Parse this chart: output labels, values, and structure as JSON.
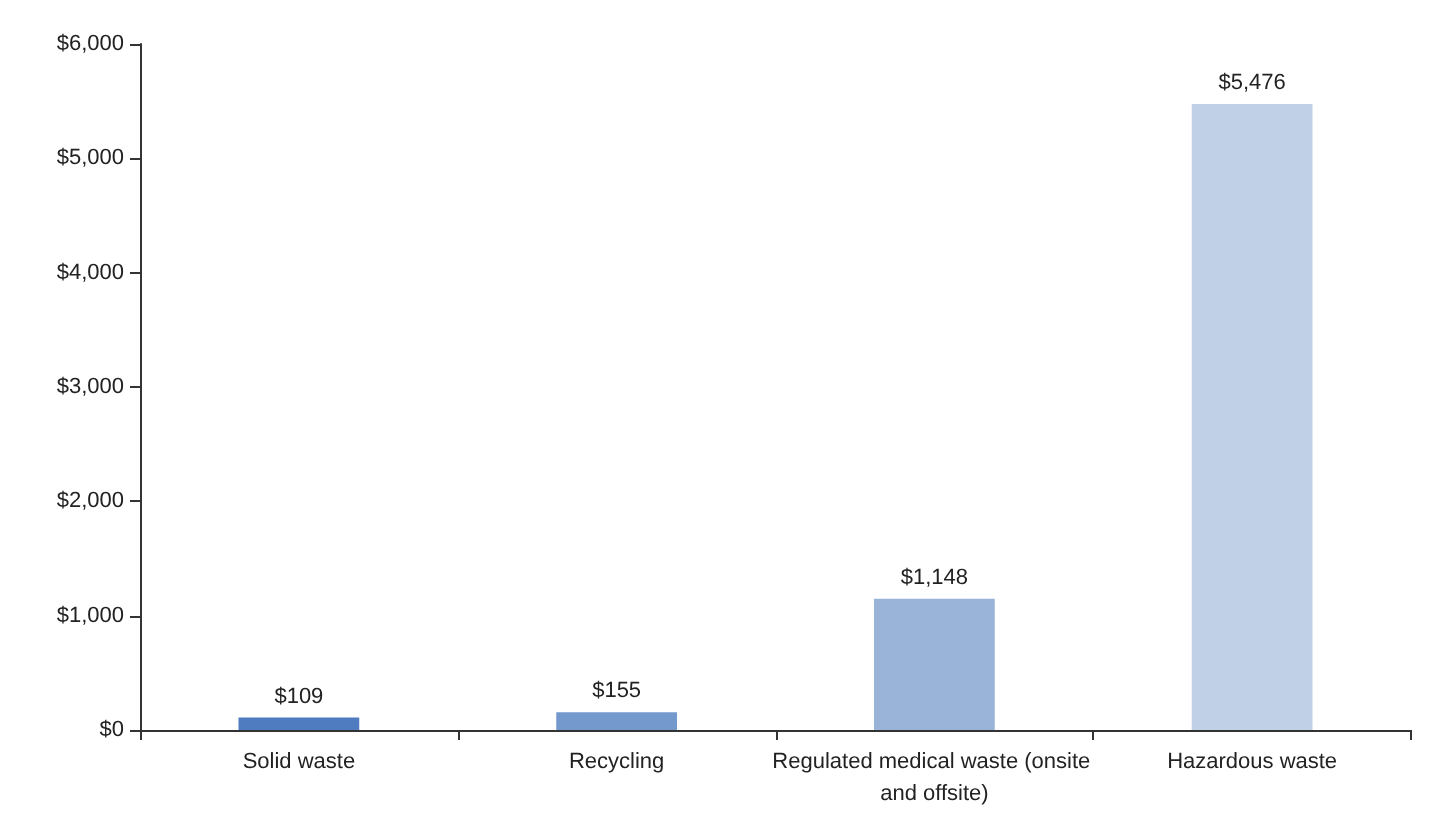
{
  "chart_data": {
    "type": "bar",
    "categories": [
      "Solid waste",
      "Recycling",
      "Regulated medical waste (onsite and offsite)",
      "Hazardous waste"
    ],
    "values": [
      109,
      155,
      1148,
      5476
    ],
    "colors": [
      "#4f7cc0",
      "#7399cd",
      "#9ab4d9",
      "#c0d0e6"
    ],
    "value_labels": [
      "$109",
      "$155",
      "$1,148",
      "$5,476"
    ],
    "ylim": [
      0,
      6000
    ],
    "yticks": [
      {
        "value": 0,
        "label": "$0"
      },
      {
        "value": 1000,
        "label": "$1,000"
      },
      {
        "value": 2000,
        "label": "$2,000"
      },
      {
        "value": 3000,
        "label": "$3,000"
      },
      {
        "value": 4000,
        "label": "$4,000"
      },
      {
        "value": 5000,
        "label": "$5,000"
      },
      {
        "value": 6000,
        "label": "$6,000"
      }
    ],
    "grid": false
  }
}
